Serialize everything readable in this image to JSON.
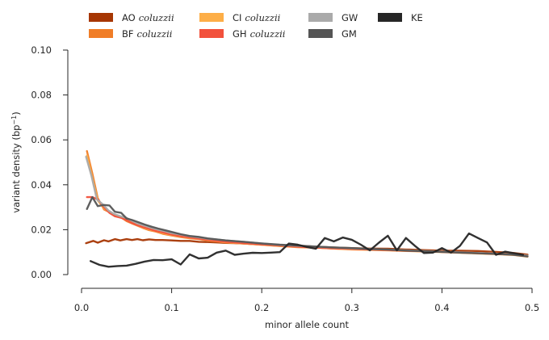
{
  "chart_data": {
    "type": "line",
    "xlabel": "minor allele count",
    "ylabel_main": "variant density (bp",
    "ylabel_sup": "−1",
    "ylabel_close": ")",
    "xlim": [
      0,
      0.5
    ],
    "ylim": [
      0,
      0.1
    ],
    "x_ticks": [
      0.0,
      0.1,
      0.2,
      0.3,
      0.4,
      0.5
    ],
    "x_tick_labels": [
      "0.0",
      "0.1",
      "0.2",
      "0.3",
      "0.4",
      "0.5"
    ],
    "y_ticks": [
      0.0,
      0.02,
      0.04,
      0.06,
      0.08,
      0.1
    ],
    "y_tick_labels": [
      "0.00",
      "0.02",
      "0.04",
      "0.06",
      "0.08",
      "0.10"
    ],
    "grid": false,
    "legend_position": "top",
    "series": [
      {
        "name": "AO",
        "name_italic": "coluzzii",
        "color": "#a63603",
        "x": [
          0.005,
          0.013,
          0.018,
          0.025,
          0.03,
          0.037,
          0.043,
          0.05,
          0.056,
          0.062,
          0.068,
          0.075,
          0.082,
          0.09,
          0.1,
          0.11,
          0.12,
          0.13,
          0.14,
          0.15,
          0.16,
          0.17,
          0.18,
          0.19,
          0.2,
          0.22,
          0.24,
          0.26,
          0.28,
          0.3,
          0.32,
          0.34,
          0.36,
          0.38,
          0.4,
          0.42,
          0.44,
          0.46,
          0.48,
          0.495
        ],
        "y": [
          0.014,
          0.015,
          0.0142,
          0.0153,
          0.0148,
          0.0158,
          0.0152,
          0.0158,
          0.0154,
          0.0158,
          0.0153,
          0.0157,
          0.0154,
          0.0154,
          0.0152,
          0.015,
          0.015,
          0.0146,
          0.0145,
          0.0143,
          0.0141,
          0.014,
          0.0138,
          0.0136,
          0.0134,
          0.013,
          0.0128,
          0.0124,
          0.0121,
          0.0118,
          0.0116,
          0.0115,
          0.0112,
          0.0109,
          0.0106,
          0.0106,
          0.0105,
          0.0101,
          0.0096,
          0.0089
        ]
      },
      {
        "name": "BF",
        "name_italic": "coluzzii",
        "color": "#f07d27",
        "x": [
          0.006,
          0.012,
          0.018,
          0.025,
          0.031,
          0.037,
          0.044,
          0.05,
          0.056,
          0.062,
          0.068,
          0.075,
          0.082,
          0.09,
          0.1,
          0.11,
          0.12,
          0.13,
          0.14,
          0.15,
          0.16,
          0.18,
          0.2,
          0.22,
          0.24,
          0.26,
          0.28,
          0.3,
          0.32,
          0.34,
          0.36,
          0.38,
          0.4,
          0.42,
          0.44,
          0.46,
          0.48,
          0.495
        ],
        "y": [
          0.055,
          0.045,
          0.034,
          0.029,
          0.0278,
          0.026,
          0.0255,
          0.0238,
          0.0228,
          0.0218,
          0.0208,
          0.0198,
          0.0192,
          0.0182,
          0.0174,
          0.0167,
          0.0162,
          0.0158,
          0.0152,
          0.0148,
          0.0143,
          0.0138,
          0.0133,
          0.0127,
          0.0122,
          0.012,
          0.0116,
          0.0113,
          0.0111,
          0.0109,
          0.0106,
          0.0104,
          0.0101,
          0.0098,
          0.0095,
          0.0092,
          0.0088,
          0.0082
        ]
      },
      {
        "name": "CI",
        "name_italic": "coluzzii",
        "color": "#fdae47",
        "x": [
          0.006,
          0.012,
          0.018,
          0.025,
          0.031,
          0.037,
          0.044,
          0.05,
          0.056,
          0.062,
          0.068,
          0.075,
          0.082,
          0.09,
          0.1,
          0.11,
          0.12,
          0.13,
          0.14,
          0.15,
          0.16,
          0.18,
          0.2,
          0.22,
          0.24,
          0.26,
          0.28,
          0.3,
          0.32,
          0.34,
          0.36,
          0.38,
          0.4,
          0.42,
          0.44,
          0.46,
          0.48,
          0.495
        ],
        "y": [
          0.053,
          0.043,
          0.033,
          0.0295,
          0.028,
          0.0265,
          0.0258,
          0.0242,
          0.0232,
          0.022,
          0.021,
          0.0201,
          0.0194,
          0.0185,
          0.0176,
          0.0169,
          0.0163,
          0.0159,
          0.0153,
          0.0149,
          0.0144,
          0.0139,
          0.0133,
          0.0128,
          0.0123,
          0.012,
          0.0116,
          0.0112,
          0.011,
          0.0108,
          0.0105,
          0.0103,
          0.01,
          0.0097,
          0.0094,
          0.0091,
          0.0087,
          0.008
        ]
      },
      {
        "name": "GH",
        "name_italic": "coluzzii",
        "color": "#f2513c",
        "x": [
          0.006,
          0.012,
          0.018,
          0.025,
          0.031,
          0.037,
          0.044,
          0.05,
          0.056,
          0.062,
          0.068,
          0.075,
          0.082,
          0.09,
          0.1,
          0.11,
          0.12,
          0.13,
          0.14,
          0.15,
          0.16,
          0.18,
          0.2,
          0.22,
          0.24,
          0.26,
          0.28,
          0.3,
          0.32,
          0.34,
          0.36,
          0.38,
          0.4,
          0.42,
          0.44,
          0.46,
          0.48,
          0.495
        ],
        "y": [
          0.0345,
          0.0345,
          0.0335,
          0.03,
          0.0275,
          0.026,
          0.0253,
          0.0242,
          0.023,
          0.022,
          0.0212,
          0.0204,
          0.0195,
          0.0188,
          0.0178,
          0.0171,
          0.0165,
          0.016,
          0.0155,
          0.015,
          0.0146,
          0.014,
          0.0134,
          0.0129,
          0.0124,
          0.012,
          0.0117,
          0.0114,
          0.0111,
          0.0109,
          0.0106,
          0.0104,
          0.0101,
          0.0098,
          0.0095,
          0.0092,
          0.0088,
          0.0082
        ]
      },
      {
        "name": "GW",
        "color": "#aaaaaa",
        "x": [
          0.005,
          0.011,
          0.017,
          0.023,
          0.03,
          0.036,
          0.043,
          0.05,
          0.056,
          0.062,
          0.07,
          0.078,
          0.085,
          0.093,
          0.1,
          0.11,
          0.12,
          0.13,
          0.14,
          0.15,
          0.16,
          0.18,
          0.2,
          0.22,
          0.24,
          0.26,
          0.28,
          0.3,
          0.32,
          0.34,
          0.36,
          0.38,
          0.4,
          0.42,
          0.44,
          0.46,
          0.48,
          0.495
        ],
        "y": [
          0.0525,
          0.044,
          0.0335,
          0.0315,
          0.0285,
          0.027,
          0.026,
          0.0252,
          0.024,
          0.0228,
          0.0218,
          0.0208,
          0.02,
          0.0193,
          0.0185,
          0.0178,
          0.0171,
          0.0166,
          0.016,
          0.0156,
          0.0152,
          0.0146,
          0.0139,
          0.0132,
          0.0128,
          0.0124,
          0.012,
          0.0117,
          0.0114,
          0.0111,
          0.0108,
          0.0105,
          0.0102,
          0.0099,
          0.0096,
          0.0093,
          0.0089,
          0.0084
        ]
      },
      {
        "name": "GM",
        "color": "#555555",
        "x": [
          0.006,
          0.012,
          0.018,
          0.025,
          0.031,
          0.037,
          0.044,
          0.05,
          0.056,
          0.062,
          0.07,
          0.078,
          0.085,
          0.093,
          0.1,
          0.11,
          0.12,
          0.13,
          0.14,
          0.15,
          0.16,
          0.18,
          0.2,
          0.22,
          0.24,
          0.26,
          0.28,
          0.3,
          0.32,
          0.34,
          0.36,
          0.38,
          0.4,
          0.42,
          0.44,
          0.46,
          0.48,
          0.495
        ],
        "y": [
          0.0292,
          0.0345,
          0.0305,
          0.031,
          0.0308,
          0.028,
          0.0275,
          0.025,
          0.0243,
          0.0235,
          0.0223,
          0.0213,
          0.0205,
          0.0197,
          0.019,
          0.018,
          0.0172,
          0.0168,
          0.0161,
          0.0157,
          0.0152,
          0.0146,
          0.0139,
          0.0133,
          0.0129,
          0.0125,
          0.0121,
          0.0118,
          0.0114,
          0.0111,
          0.0107,
          0.0104,
          0.0101,
          0.0098,
          0.0095,
          0.0092,
          0.0088,
          0.0081
        ]
      },
      {
        "name": "KE",
        "color": "#262626",
        "x": [
          0.01,
          0.02,
          0.03,
          0.04,
          0.05,
          0.06,
          0.07,
          0.08,
          0.09,
          0.1,
          0.11,
          0.12,
          0.13,
          0.14,
          0.15,
          0.16,
          0.17,
          0.18,
          0.19,
          0.2,
          0.21,
          0.22,
          0.23,
          0.24,
          0.25,
          0.26,
          0.27,
          0.28,
          0.29,
          0.3,
          0.31,
          0.32,
          0.33,
          0.34,
          0.35,
          0.36,
          0.37,
          0.38,
          0.39,
          0.4,
          0.41,
          0.42,
          0.43,
          0.44,
          0.45,
          0.46,
          0.47,
          0.48,
          0.49
        ],
        "y": [
          0.006,
          0.0043,
          0.0035,
          0.0038,
          0.004,
          0.0048,
          0.0058,
          0.0065,
          0.0064,
          0.0068,
          0.0045,
          0.009,
          0.0072,
          0.0075,
          0.0098,
          0.0107,
          0.0088,
          0.0093,
          0.0097,
          0.0096,
          0.0098,
          0.01,
          0.0138,
          0.0133,
          0.0123,
          0.0115,
          0.0163,
          0.0148,
          0.0165,
          0.0155,
          0.0133,
          0.0108,
          0.0142,
          0.0173,
          0.0108,
          0.0163,
          0.0128,
          0.0096,
          0.0098,
          0.0118,
          0.0098,
          0.0128,
          0.0183,
          0.0163,
          0.0143,
          0.0088,
          0.0102,
          0.0095,
          0.0088
        ]
      }
    ]
  }
}
